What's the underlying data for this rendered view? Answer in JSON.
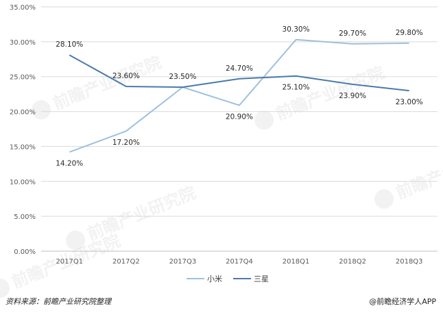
{
  "chart_data": {
    "type": "line",
    "categories": [
      "2017Q1",
      "2017Q2",
      "2017Q3",
      "2017Q4",
      "2018Q1",
      "2018Q2",
      "2018Q3"
    ],
    "series": [
      {
        "name": "小米",
        "color": "#9ec0de",
        "values": [
          14.2,
          17.2,
          23.5,
          20.9,
          30.3,
          29.7,
          29.8
        ],
        "labels": [
          "14.20%",
          "17.20%",
          "23.50%",
          "20.90%",
          "30.30%",
          "29.70%",
          "29.80%"
        ]
      },
      {
        "name": "三星",
        "color": "#4a7aab",
        "values": [
          28.1,
          23.6,
          23.5,
          24.7,
          25.1,
          23.9,
          23.0
        ],
        "labels": [
          "28.10%",
          "23.60%",
          "23.50%",
          "24.70%",
          "25.10%",
          "23.90%",
          "23.00%"
        ]
      }
    ],
    "ylim": [
      0,
      35
    ],
    "yticks": [
      0,
      5,
      10,
      15,
      20,
      25,
      30,
      35
    ],
    "ytick_labels": [
      "0.00%",
      "5.00%",
      "10.00%",
      "15.00%",
      "20.00%",
      "25.00%",
      "30.00%",
      "35.00%"
    ],
    "grid": true,
    "legend": "bottom"
  },
  "footer": {
    "source": "资料来源：前瞻产业研究院整理",
    "brand": "@前瞻经济学人APP"
  },
  "watermark": "前瞻产业研究院"
}
